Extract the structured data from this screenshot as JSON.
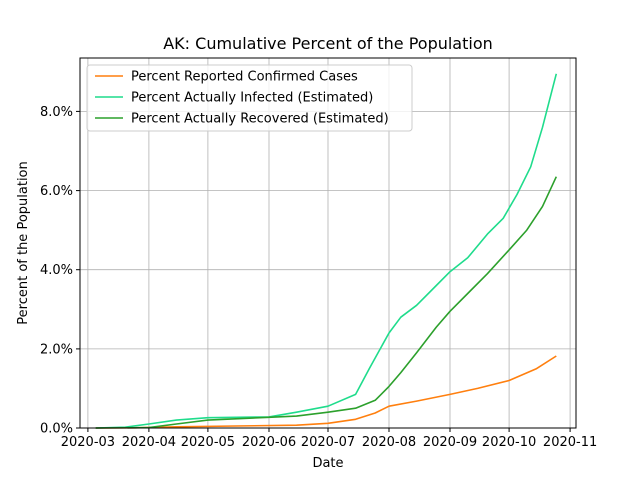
{
  "chart_data": {
    "type": "line",
    "title": "AK: Cumulative Percent of the Population",
    "xlabel": "Date",
    "ylabel": "Percent of the Population",
    "x_ticks": [
      "2020-03-01",
      "2020-04-01",
      "2020-05-01",
      "2020-06-01",
      "2020-07-01",
      "2020-08-01",
      "2020-09-01",
      "2020-10-01",
      "2020-11-01"
    ],
    "x_tick_labels": [
      "2020-03",
      "2020-04",
      "2020-05",
      "2020-06",
      "2020-07",
      "2020-08",
      "2020-09",
      "2020-10",
      "2020-11"
    ],
    "xlim": [
      "2020-02-26",
      "2020-11-04"
    ],
    "y_ticks": [
      0,
      2,
      4,
      6,
      8
    ],
    "y_tick_labels": [
      "0.0%",
      "2.0%",
      "4.0%",
      "6.0%",
      "8.0%"
    ],
    "ylim": [
      0,
      9.35
    ],
    "grid": true,
    "legend_position": "upper-left",
    "series": [
      {
        "name": "Percent Reported Confirmed Cases",
        "color": "#ff7f0e",
        "x": [
          "2020-03-05",
          "2020-03-25",
          "2020-04-15",
          "2020-05-15",
          "2020-06-15",
          "2020-07-01",
          "2020-07-15",
          "2020-07-25",
          "2020-08-01",
          "2020-08-15",
          "2020-09-01",
          "2020-09-15",
          "2020-10-01",
          "2020-10-15",
          "2020-10-25"
        ],
        "y": [
          0,
          0.005,
          0.03,
          0.05,
          0.07,
          0.12,
          0.22,
          0.38,
          0.55,
          0.68,
          0.85,
          1.0,
          1.2,
          1.5,
          1.82
        ]
      },
      {
        "name": "Percent Actually Infected (Estimated)",
        "color": "#1fdc8c",
        "x": [
          "2020-03-05",
          "2020-03-20",
          "2020-04-01",
          "2020-04-15",
          "2020-05-01",
          "2020-06-01",
          "2020-06-15",
          "2020-07-01",
          "2020-07-15",
          "2020-07-22",
          "2020-08-01",
          "2020-08-07",
          "2020-08-15",
          "2020-08-25",
          "2020-09-01",
          "2020-09-10",
          "2020-09-20",
          "2020-09-28",
          "2020-10-05",
          "2020-10-12",
          "2020-10-18",
          "2020-10-25"
        ],
        "y": [
          0,
          0.02,
          0.1,
          0.2,
          0.26,
          0.28,
          0.4,
          0.55,
          0.85,
          1.5,
          2.4,
          2.8,
          3.1,
          3.6,
          3.95,
          4.3,
          4.9,
          5.3,
          5.9,
          6.6,
          7.6,
          8.95
        ]
      },
      {
        "name": "Percent Actually Recovered (Estimated)",
        "color": "#2ca02c",
        "x": [
          "2020-03-05",
          "2020-04-01",
          "2020-04-15",
          "2020-05-01",
          "2020-06-01",
          "2020-06-15",
          "2020-07-01",
          "2020-07-15",
          "2020-07-25",
          "2020-08-01",
          "2020-08-07",
          "2020-08-15",
          "2020-08-25",
          "2020-09-01",
          "2020-09-10",
          "2020-09-20",
          "2020-10-01",
          "2020-10-10",
          "2020-10-18",
          "2020-10-25"
        ],
        "y": [
          0,
          0.01,
          0.1,
          0.2,
          0.27,
          0.3,
          0.4,
          0.5,
          0.7,
          1.05,
          1.4,
          1.9,
          2.55,
          2.95,
          3.4,
          3.9,
          4.5,
          5.0,
          5.6,
          6.35
        ]
      }
    ]
  }
}
